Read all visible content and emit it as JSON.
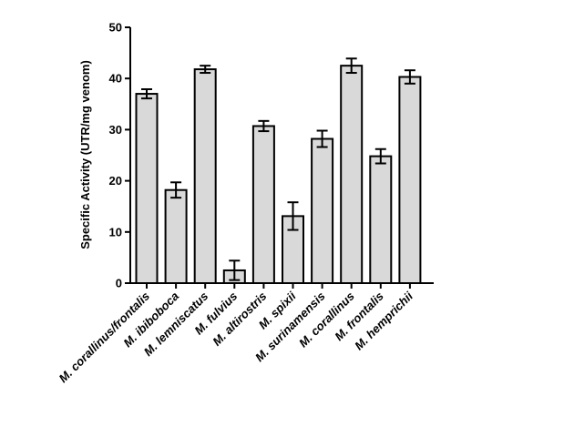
{
  "chart_data": {
    "type": "bar",
    "title": "",
    "xlabel": "",
    "ylabel": "Specific Activity (UTR/mg venom)",
    "ylim": [
      0,
      50
    ],
    "yticks": [
      0,
      10,
      20,
      30,
      40,
      50
    ],
    "grid": false,
    "legend": "none",
    "categories": [
      "M. corallinus/frontalis",
      "M. ibiboboca",
      "M. lemniscatus",
      "M. fulvius",
      "M. altirostris",
      "M. spixii",
      "M. surinamensis",
      "M. corallinus",
      "M. frontalis",
      "M. hemprichii"
    ],
    "values": [
      37.0,
      18.2,
      41.8,
      2.5,
      30.7,
      13.1,
      28.2,
      42.5,
      24.8,
      40.3
    ],
    "errors": [
      0.9,
      1.5,
      0.7,
      1.9,
      1.0,
      2.7,
      1.6,
      1.4,
      1.4,
      1.3
    ],
    "colors": {
      "bar_fill": "#d9d9d9",
      "bar_stroke": "#000000",
      "axis": "#000000"
    }
  }
}
